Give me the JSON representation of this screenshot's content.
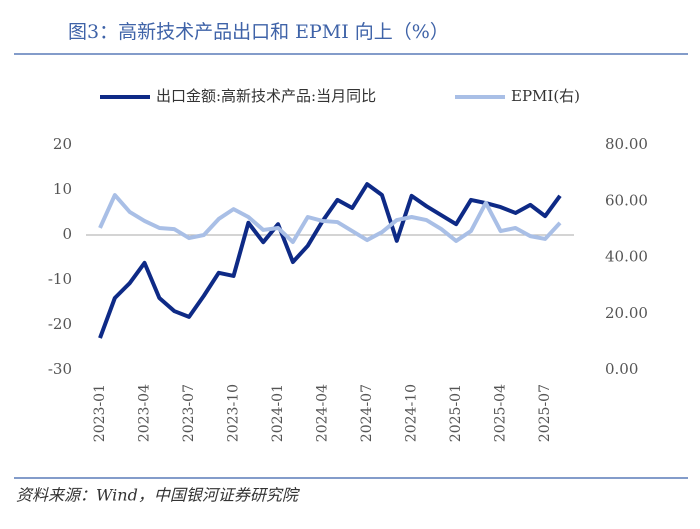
{
  "chart_data": {
    "type": "line",
    "title": "图3：高新技术产品出口和 EPMI 向上（%）",
    "source": "资料来源：Wind，中国银河证券研究院",
    "categories": [
      "2023-01",
      null,
      null,
      "2023-04",
      null,
      null,
      "2023-07",
      null,
      null,
      "2023-10",
      null,
      null,
      "2024-01",
      null,
      null,
      "2024-04",
      null,
      null,
      "2024-07",
      null,
      null,
      "2024-10",
      null,
      null,
      "2025-01",
      null,
      null,
      "2025-04",
      null,
      null,
      "2025-07",
      null
    ],
    "series": [
      {
        "name": "出口金额:高新技术产品:当月同比",
        "color": "#0e2a86",
        "values": [
          -22.9,
          -14,
          -10.7,
          -6.2,
          -14,
          -16.9,
          -18.2,
          -13.5,
          -8.4,
          -9.1,
          2.7,
          -1.6,
          2.4,
          -6,
          -2.4,
          3.1,
          7.8,
          6,
          11.3,
          8.9,
          -1.3,
          8.7,
          6.4,
          4.4,
          2.4,
          7.8,
          7.1,
          6.2,
          4.9,
          6.7,
          4.2,
          8.7
        ]
      },
      {
        "name": "EPMI(右)",
        "color": "#a9bfe6",
        "axis": "y2",
        "values": [
          50.5,
          62.2,
          56.2,
          53,
          50.5,
          50.1,
          46.9,
          48,
          53.7,
          57.2,
          54.4,
          49.8,
          50.5,
          45.5,
          54.4,
          53,
          52.6,
          49.4,
          46.2,
          49,
          53.3,
          54.4,
          53.3,
          50.1,
          45.9,
          49.4,
          59.4,
          49.4,
          50.5,
          47.6,
          46.6,
          52.3
        ]
      }
    ],
    "ylim": [
      -30,
      20
    ],
    "yticks": [
      -30,
      -20,
      -10,
      0,
      10,
      20
    ],
    "y2lim": [
      0,
      80
    ],
    "y2ticks": [
      {
        "value": 0,
        "label": "0.00"
      },
      {
        "value": 20,
        "label": "20.00"
      },
      {
        "value": 40,
        "label": "40.00"
      },
      {
        "value": 60,
        "label": "60.00"
      },
      {
        "value": 80,
        "label": "80.00"
      }
    ],
    "legend": "top"
  }
}
